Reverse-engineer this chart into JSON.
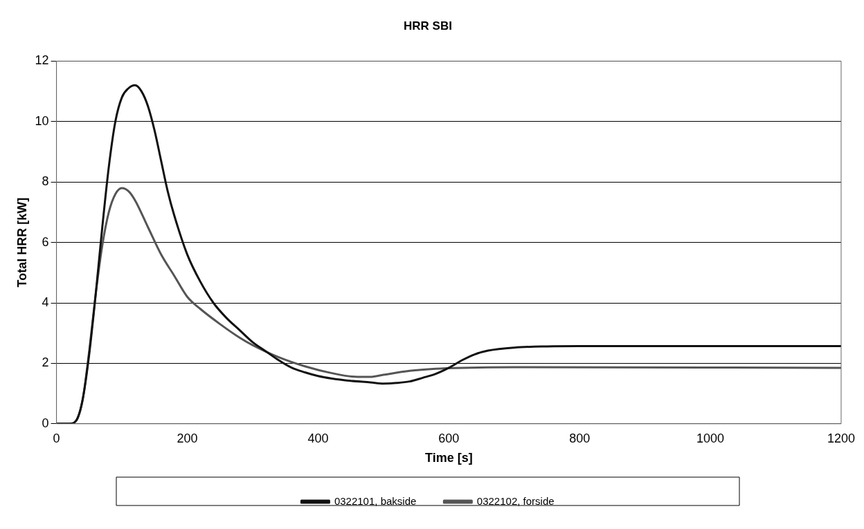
{
  "chart_data": {
    "type": "line",
    "title": "HRR SBI",
    "xlabel": "Time [s]",
    "ylabel": "Total HRR [kW]",
    "xlim": [
      0,
      1200
    ],
    "xticks": [
      0,
      200,
      400,
      600,
      800,
      1000,
      1200
    ],
    "ylim": [
      0,
      12
    ],
    "yticks": [
      0,
      2,
      4,
      6,
      8,
      10,
      12
    ],
    "grid": "y",
    "legend": "bottom",
    "marker": "none",
    "series": [
      {
        "name": "0322101, bakside",
        "color": "#111111",
        "x": [
          0,
          20,
          30,
          40,
          50,
          60,
          70,
          80,
          90,
          100,
          110,
          120,
          130,
          140,
          150,
          160,
          170,
          180,
          200,
          220,
          240,
          260,
          280,
          300,
          320,
          340,
          360,
          380,
          400,
          420,
          450,
          480,
          500,
          520,
          540,
          560,
          580,
          600,
          620,
          640,
          660,
          700,
          750,
          800,
          1200
        ],
        "values": [
          0,
          0,
          0.1,
          0.8,
          2.3,
          4.3,
          6.5,
          8.5,
          10,
          10.8,
          11.1,
          11.2,
          11,
          10.5,
          9.7,
          8.7,
          7.7,
          6.9,
          5.6,
          4.7,
          4,
          3.5,
          3.1,
          2.7,
          2.4,
          2.1,
          1.85,
          1.7,
          1.58,
          1.5,
          1.42,
          1.37,
          1.33,
          1.35,
          1.4,
          1.52,
          1.65,
          1.85,
          2.1,
          2.3,
          2.42,
          2.52,
          2.56,
          2.57,
          2.57
        ]
      },
      {
        "name": "0322102, forside",
        "color": "#555555",
        "x": [
          0,
          20,
          30,
          40,
          50,
          60,
          70,
          80,
          90,
          100,
          110,
          120,
          140,
          160,
          180,
          200,
          220,
          250,
          280,
          300,
          340,
          380,
          420,
          460,
          480,
          500,
          540,
          580,
          620,
          700,
          1200
        ],
        "values": [
          0,
          0,
          0.1,
          0.8,
          2.4,
          4.3,
          5.9,
          7,
          7.6,
          7.8,
          7.7,
          7.4,
          6.5,
          5.6,
          4.9,
          4.2,
          3.8,
          3.3,
          2.85,
          2.6,
          2.2,
          1.9,
          1.68,
          1.55,
          1.55,
          1.62,
          1.75,
          1.82,
          1.85,
          1.87,
          1.85
        ]
      }
    ]
  }
}
